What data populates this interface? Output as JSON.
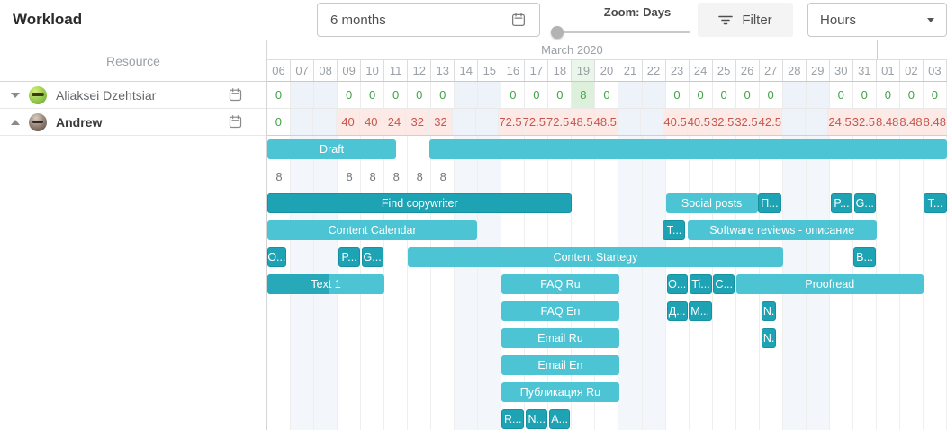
{
  "toolbar": {
    "title": "Workload",
    "range_label": "6 months",
    "zoom_label": "Zoom: Days",
    "filter_label": "Filter",
    "units_label": "Hours"
  },
  "resource_panel": {
    "header": "Resource"
  },
  "timeline": {
    "month_label": "March 2020",
    "days": [
      "06",
      "07",
      "08",
      "09",
      "10",
      "11",
      "12",
      "13",
      "14",
      "15",
      "16",
      "17",
      "18",
      "19",
      "20",
      "21",
      "22",
      "23",
      "24",
      "25",
      "26",
      "27",
      "28",
      "29",
      "30",
      "31",
      "01",
      "02",
      "03"
    ],
    "weekend_indices": [
      1,
      2,
      8,
      9,
      15,
      16,
      22,
      23
    ],
    "today_index": 13,
    "april_start_index": 26
  },
  "colors": {
    "bar_light": "#4dc4d3",
    "bar_dark": "#1ea3b4",
    "ok_text": "#44a248",
    "overload_text": "#c4574d",
    "overload_bg": "#fdeae7",
    "today_bg": "#dcf0dc",
    "weekend_bg": "#eef2f9"
  },
  "resources": [
    {
      "name": "Aliaksei Dzehtsiar",
      "expanded": false,
      "bold": false,
      "avatar": "green-smiley-avatar",
      "cells": [
        {
          "v": "0",
          "s": "ok"
        },
        {
          "v": "",
          "s": ""
        },
        {
          "v": "",
          "s": ""
        },
        {
          "v": "0",
          "s": "ok"
        },
        {
          "v": "0",
          "s": "ok"
        },
        {
          "v": "0",
          "s": "ok"
        },
        {
          "v": "0",
          "s": "ok"
        },
        {
          "v": "0",
          "s": "ok"
        },
        {
          "v": "",
          "s": ""
        },
        {
          "v": "",
          "s": ""
        },
        {
          "v": "0",
          "s": "ok"
        },
        {
          "v": "0",
          "s": "ok"
        },
        {
          "v": "0",
          "s": "ok"
        },
        {
          "v": "8",
          "s": "today"
        },
        {
          "v": "0",
          "s": "ok"
        },
        {
          "v": "",
          "s": ""
        },
        {
          "v": "",
          "s": ""
        },
        {
          "v": "0",
          "s": "ok"
        },
        {
          "v": "0",
          "s": "ok"
        },
        {
          "v": "0",
          "s": "ok"
        },
        {
          "v": "0",
          "s": "ok"
        },
        {
          "v": "0",
          "s": "ok"
        },
        {
          "v": "",
          "s": ""
        },
        {
          "v": "",
          "s": ""
        },
        {
          "v": "0",
          "s": "ok"
        },
        {
          "v": "0",
          "s": "ok"
        },
        {
          "v": "0",
          "s": "ok"
        },
        {
          "v": "0",
          "s": "ok"
        },
        {
          "v": "0",
          "s": "ok"
        }
      ]
    },
    {
      "name": "Andrew",
      "expanded": true,
      "bold": true,
      "avatar": "photo-avatar",
      "cells": [
        {
          "v": "0",
          "s": "ok"
        },
        {
          "v": "",
          "s": ""
        },
        {
          "v": "",
          "s": ""
        },
        {
          "v": "40",
          "s": "over"
        },
        {
          "v": "40",
          "s": "over"
        },
        {
          "v": "24",
          "s": "over"
        },
        {
          "v": "32",
          "s": "over"
        },
        {
          "v": "32",
          "s": "over"
        },
        {
          "v": "",
          "s": ""
        },
        {
          "v": "",
          "s": ""
        },
        {
          "v": "72.5",
          "s": "over"
        },
        {
          "v": "72.5",
          "s": "over"
        },
        {
          "v": "72.5",
          "s": "over"
        },
        {
          "v": "48.5",
          "s": "over"
        },
        {
          "v": "48.5",
          "s": "over"
        },
        {
          "v": "",
          "s": ""
        },
        {
          "v": "",
          "s": ""
        },
        {
          "v": "40.5",
          "s": "over"
        },
        {
          "v": "40.5",
          "s": "over"
        },
        {
          "v": "32.5",
          "s": "over"
        },
        {
          "v": "32.5",
          "s": "over"
        },
        {
          "v": "42.5",
          "s": "over"
        },
        {
          "v": "",
          "s": ""
        },
        {
          "v": "",
          "s": ""
        },
        {
          "v": "24.5",
          "s": "over"
        },
        {
          "v": "32.5",
          "s": "over"
        },
        {
          "v": "8.48",
          "s": "over"
        },
        {
          "v": "8.48",
          "s": "over"
        },
        {
          "v": "8.48",
          "s": "over"
        }
      ]
    }
  ],
  "task_rows": [
    {
      "type": "bars",
      "bars": [
        {
          "label": "Draft",
          "start": 0,
          "end": 5.5,
          "style": "light"
        },
        {
          "label": "",
          "start": 6.92,
          "end": 29,
          "style": "light"
        }
      ]
    },
    {
      "type": "numbers",
      "cells": [
        {
          "day": 0,
          "v": "8"
        },
        {
          "day": 3,
          "v": "8"
        },
        {
          "day": 4,
          "v": "8"
        },
        {
          "day": 5,
          "v": "8"
        },
        {
          "day": 6,
          "v": "8"
        },
        {
          "day": 7,
          "v": "8"
        }
      ]
    },
    {
      "type": "bars",
      "bars": [
        {
          "label": "Find copywriter",
          "start": 0,
          "end": 13,
          "style": "dark"
        },
        {
          "label": "Social posts",
          "start": 17,
          "end": 20.92,
          "style": "light"
        },
        {
          "label": "П...",
          "start": 20.92,
          "end": 21.94,
          "style": "dark"
        },
        {
          "label": "P...",
          "start": 24.04,
          "end": 24.97,
          "style": "dark"
        },
        {
          "label": "G...",
          "start": 25.03,
          "end": 25.96,
          "style": "dark"
        },
        {
          "label": "T...",
          "start": 28,
          "end": 29,
          "style": "dark"
        }
      ]
    },
    {
      "type": "bars",
      "bars": [
        {
          "label": "Content Calendar",
          "start": 0,
          "end": 8.96,
          "style": "light"
        },
        {
          "label": "T...",
          "start": 16.88,
          "end": 17.84,
          "style": "dark"
        },
        {
          "label": "Software reviews - описание",
          "start": 17.92,
          "end": 26,
          "style": "light"
        }
      ]
    },
    {
      "type": "bars",
      "bars": [
        {
          "label": "O...",
          "start": 0,
          "end": 0.8,
          "style": "dark"
        },
        {
          "label": "P...",
          "start": 3.04,
          "end": 3.96,
          "style": "dark"
        },
        {
          "label": "G...",
          "start": 4.02,
          "end": 4.94,
          "style": "dark"
        },
        {
          "label": "Content Startegy",
          "start": 6,
          "end": 22,
          "style": "light"
        },
        {
          "label": "B...",
          "start": 25,
          "end": 25.97,
          "style": "dark"
        }
      ]
    },
    {
      "type": "bars",
      "bars": [
        {
          "label": "Text 1",
          "start": 0,
          "end": 5,
          "style": "light",
          "progress": 0.52
        },
        {
          "label": "FAQ Ru",
          "start": 10,
          "end": 15,
          "style": "light"
        },
        {
          "label": "O...",
          "start": 17.04,
          "end": 17.93,
          "style": "dark"
        },
        {
          "label": "Ti...",
          "start": 18.03,
          "end": 18.96,
          "style": "dark"
        },
        {
          "label": "C...",
          "start": 19.02,
          "end": 19.95,
          "style": "dark"
        },
        {
          "label": "Proofread",
          "start": 20,
          "end": 28,
          "style": "light"
        }
      ]
    },
    {
      "type": "bars",
      "bars": [
        {
          "label": "FAQ En",
          "start": 10,
          "end": 15,
          "style": "light"
        },
        {
          "label": "Д...",
          "start": 17.04,
          "end": 17.93,
          "style": "dark"
        },
        {
          "label": "М...",
          "start": 17.97,
          "end": 18.96,
          "style": "dark"
        },
        {
          "label": "N.",
          "start": 21.08,
          "end": 21.72,
          "style": "dark"
        }
      ]
    },
    {
      "type": "bars",
      "bars": [
        {
          "label": "Email Ru",
          "start": 10,
          "end": 15,
          "style": "light"
        },
        {
          "label": "N.",
          "start": 21.08,
          "end": 21.72,
          "style": "dark"
        }
      ]
    },
    {
      "type": "bars",
      "bars": [
        {
          "label": "Email En",
          "start": 10,
          "end": 15,
          "style": "light"
        }
      ]
    },
    {
      "type": "bars",
      "bars": [
        {
          "label": "Публикация Ru",
          "start": 10,
          "end": 15,
          "style": "light"
        }
      ]
    },
    {
      "type": "bars",
      "bars": [
        {
          "label": "R...",
          "start": 10,
          "end": 10.95,
          "style": "dark"
        },
        {
          "label": "N...",
          "start": 11.03,
          "end": 11.96,
          "style": "dark"
        },
        {
          "label": "A...",
          "start": 12.04,
          "end": 12.9,
          "style": "dark"
        }
      ]
    }
  ]
}
